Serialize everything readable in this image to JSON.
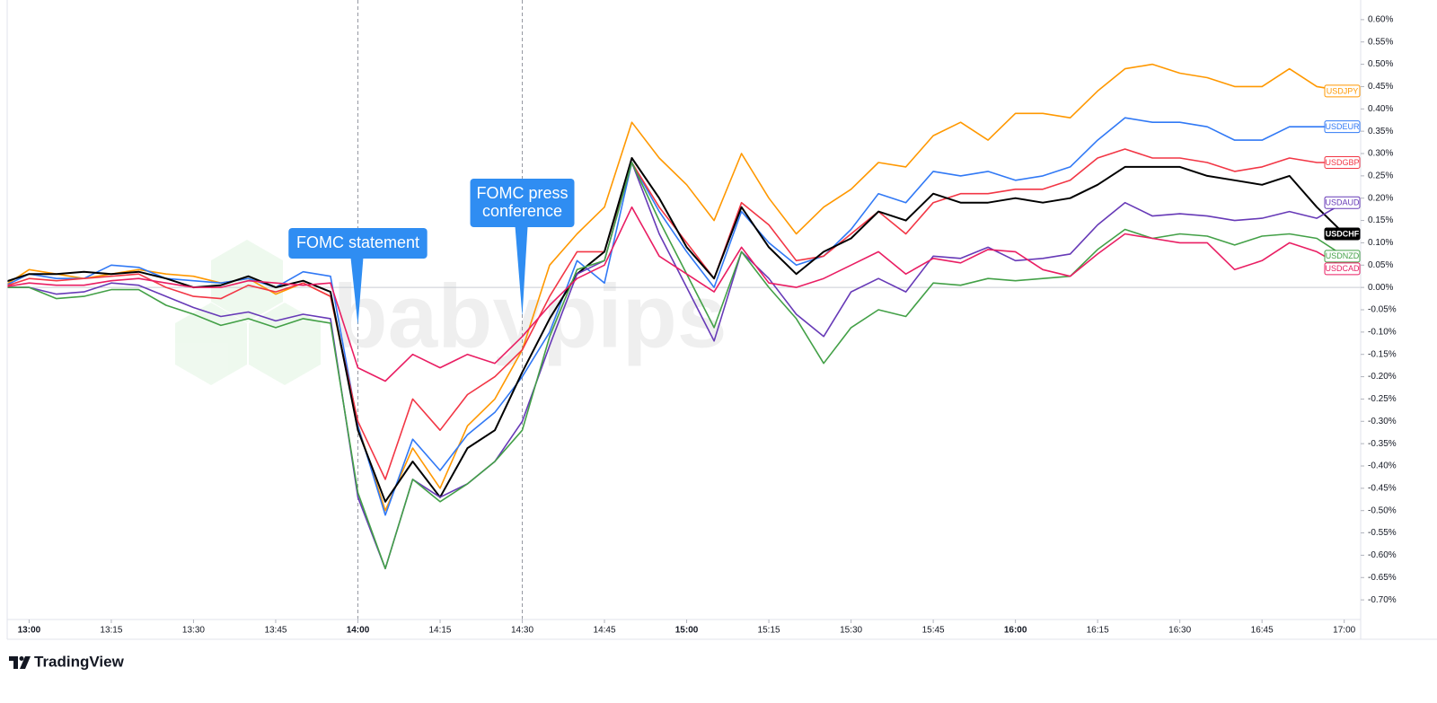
{
  "chart_data": {
    "type": "line",
    "x": [
      "12:55",
      "13:00",
      "13:05",
      "13:10",
      "13:15",
      "13:20",
      "13:25",
      "13:30",
      "13:35",
      "13:40",
      "13:45",
      "13:50",
      "13:55",
      "14:00",
      "14:05",
      "14:10",
      "14:15",
      "14:20",
      "14:25",
      "14:30",
      "14:35",
      "14:40",
      "14:45",
      "14:50",
      "14:55",
      "15:00",
      "15:05",
      "15:10",
      "15:15",
      "15:20",
      "15:25",
      "15:30",
      "15:35",
      "15:40",
      "15:45",
      "15:50",
      "15:55",
      "16:00",
      "16:05",
      "16:10",
      "16:15",
      "16:20",
      "16:25",
      "16:30",
      "16:35",
      "16:40",
      "16:45",
      "16:50",
      "16:55",
      "17:00"
    ],
    "xlim": [
      "12:56",
      "17:03"
    ],
    "xticks": [
      "13:00",
      "13:15",
      "13:30",
      "13:45",
      "14:00",
      "14:15",
      "14:30",
      "14:45",
      "15:00",
      "15:15",
      "15:30",
      "15:45",
      "16:00",
      "16:15",
      "16:30",
      "16:45",
      "17:00"
    ],
    "ylim": [
      -0.744,
      0.644
    ],
    "yticks": [
      {
        "value": 0.6,
        "label": "0.60%"
      },
      {
        "value": 0.55,
        "label": "0.55%"
      },
      {
        "value": 0.5,
        "label": "0.50%"
      },
      {
        "value": 0.45,
        "label": "0.45%"
      },
      {
        "value": 0.4,
        "label": "0.40%"
      },
      {
        "value": 0.35,
        "label": "0.35%"
      },
      {
        "value": 0.3,
        "label": "0.30%"
      },
      {
        "value": 0.25,
        "label": "0.25%"
      },
      {
        "value": 0.2,
        "label": "0.20%"
      },
      {
        "value": 0.15,
        "label": "0.15%"
      },
      {
        "value": 0.1,
        "label": "0.10%"
      },
      {
        "value": 0.05,
        "label": "0.05%"
      },
      {
        "value": 0,
        "label": "0.00%"
      },
      {
        "value": -0.05,
        "label": "-0.05%"
      },
      {
        "value": -0.1,
        "label": "-0.10%"
      },
      {
        "value": -0.15,
        "label": "-0.15%"
      },
      {
        "value": -0.2,
        "label": "-0.20%"
      },
      {
        "value": -0.25,
        "label": "-0.25%"
      },
      {
        "value": -0.3,
        "label": "-0.30%"
      },
      {
        "value": -0.35,
        "label": "-0.35%"
      },
      {
        "value": -0.4,
        "label": "-0.40%"
      },
      {
        "value": -0.45,
        "label": "-0.45%"
      },
      {
        "value": -0.5,
        "label": "-0.50%"
      },
      {
        "value": -0.55,
        "label": "-0.55%"
      },
      {
        "value": -0.6,
        "label": "-0.60%"
      },
      {
        "value": -0.65,
        "label": "-0.65%"
      },
      {
        "value": -0.7,
        "label": "-0.70%"
      }
    ],
    "zero_line": true,
    "series": [
      {
        "name": "USDJPY",
        "color": "#ff9800",
        "values": [
          0.0,
          0.04,
          0.03,
          0.02,
          0.03,
          0.04,
          0.03,
          0.025,
          0.01,
          0.02,
          -0.015,
          0.01,
          -0.02,
          -0.31,
          -0.5,
          -0.36,
          -0.45,
          -0.31,
          -0.25,
          -0.14,
          0.05,
          0.12,
          0.18,
          0.37,
          0.29,
          0.23,
          0.15,
          0.3,
          0.2,
          0.12,
          0.18,
          0.22,
          0.28,
          0.27,
          0.34,
          0.37,
          0.33,
          0.39,
          0.39,
          0.38,
          0.44,
          0.49,
          0.5,
          0.48,
          0.47,
          0.45,
          0.45,
          0.49,
          0.45,
          0.44
        ]
      },
      {
        "name": "USDEUR",
        "color": "#3179f5",
        "values": [
          0.0,
          0.03,
          0.02,
          0.02,
          0.05,
          0.045,
          0.02,
          0.015,
          0.01,
          0.02,
          0.0,
          0.035,
          0.025,
          -0.31,
          -0.51,
          -0.34,
          -0.41,
          -0.33,
          -0.28,
          -0.2,
          -0.1,
          0.06,
          0.01,
          0.28,
          0.17,
          0.08,
          0.0,
          0.17,
          0.1,
          0.05,
          0.07,
          0.13,
          0.21,
          0.19,
          0.26,
          0.25,
          0.26,
          0.24,
          0.25,
          0.27,
          0.33,
          0.38,
          0.37,
          0.37,
          0.36,
          0.33,
          0.33,
          0.36,
          0.36,
          0.36
        ]
      },
      {
        "name": "USDGBP",
        "color": "#f23645",
        "values": [
          0.0,
          0.02,
          0.015,
          0.02,
          0.025,
          0.03,
          0.0,
          -0.02,
          -0.025,
          0.005,
          -0.01,
          0.01,
          -0.02,
          -0.3,
          -0.43,
          -0.25,
          -0.32,
          -0.24,
          -0.2,
          -0.14,
          -0.02,
          0.08,
          0.08,
          0.28,
          0.18,
          0.1,
          0.02,
          0.19,
          0.14,
          0.06,
          0.07,
          0.12,
          0.17,
          0.12,
          0.19,
          0.21,
          0.21,
          0.22,
          0.22,
          0.24,
          0.29,
          0.31,
          0.29,
          0.29,
          0.28,
          0.26,
          0.27,
          0.29,
          0.28,
          0.28
        ]
      },
      {
        "name": "USDCHF",
        "color": "#000000",
        "highlighted": true,
        "values": [
          0.01,
          0.03,
          0.03,
          0.035,
          0.03,
          0.035,
          0.02,
          0.0,
          0.005,
          0.025,
          0.0,
          0.015,
          -0.01,
          -0.32,
          -0.48,
          -0.39,
          -0.47,
          -0.36,
          -0.32,
          -0.19,
          -0.07,
          0.03,
          0.08,
          0.29,
          0.2,
          0.09,
          0.02,
          0.18,
          0.09,
          0.03,
          0.08,
          0.11,
          0.17,
          0.15,
          0.21,
          0.19,
          0.19,
          0.2,
          0.19,
          0.2,
          0.23,
          0.27,
          0.27,
          0.27,
          0.25,
          0.24,
          0.23,
          0.25,
          0.18,
          0.12
        ]
      },
      {
        "name": "USDAUD",
        "color": "#673ab7",
        "values": [
          0.0,
          0.0,
          -0.015,
          -0.01,
          0.01,
          0.005,
          -0.02,
          -0.045,
          -0.065,
          -0.055,
          -0.075,
          -0.06,
          -0.07,
          -0.47,
          -0.63,
          -0.43,
          -0.47,
          -0.44,
          -0.39,
          -0.3,
          -0.13,
          0.03,
          0.06,
          0.28,
          0.12,
          0.0,
          -0.12,
          0.08,
          0.02,
          -0.06,
          -0.11,
          -0.01,
          0.02,
          -0.01,
          0.07,
          0.065,
          0.09,
          0.06,
          0.065,
          0.075,
          0.14,
          0.19,
          0.16,
          0.165,
          0.16,
          0.15,
          0.155,
          0.17,
          0.155,
          0.19
        ]
      },
      {
        "name": "USDNZD",
        "color": "#43a047",
        "values": [
          0.0,
          0.0,
          -0.025,
          -0.02,
          -0.005,
          -0.005,
          -0.04,
          -0.06,
          -0.085,
          -0.07,
          -0.09,
          -0.07,
          -0.08,
          -0.46,
          -0.63,
          -0.43,
          -0.48,
          -0.44,
          -0.39,
          -0.32,
          -0.11,
          0.04,
          0.06,
          0.28,
          0.15,
          0.03,
          -0.09,
          0.08,
          0.0,
          -0.07,
          -0.17,
          -0.09,
          -0.05,
          -0.065,
          0.01,
          0.005,
          0.02,
          0.015,
          0.02,
          0.025,
          0.085,
          0.13,
          0.11,
          0.12,
          0.115,
          0.095,
          0.115,
          0.12,
          0.11,
          0.07
        ]
      },
      {
        "name": "USDCAD",
        "color": "#e91e63",
        "values": [
          0.0,
          0.01,
          0.005,
          0.005,
          0.015,
          0.02,
          0.01,
          0.0,
          0.0,
          0.015,
          0.01,
          0.005,
          0.01,
          -0.18,
          -0.21,
          -0.15,
          -0.18,
          -0.15,
          -0.17,
          -0.11,
          -0.04,
          0.02,
          0.05,
          0.18,
          0.07,
          0.03,
          -0.01,
          0.09,
          0.01,
          0.0,
          0.02,
          0.05,
          0.08,
          0.03,
          0.065,
          0.055,
          0.085,
          0.08,
          0.04,
          0.025,
          0.075,
          0.12,
          0.11,
          0.1,
          0.1,
          0.04,
          0.06,
          0.1,
          0.08,
          0.045
        ]
      }
    ],
    "annotations": [
      {
        "x": "14:00",
        "text": [
          "FOMC statement"
        ]
      },
      {
        "x": "14:30",
        "text": [
          "FOMC press",
          "conference"
        ]
      }
    ],
    "watermark": "babypips",
    "branding": "TradingView"
  }
}
